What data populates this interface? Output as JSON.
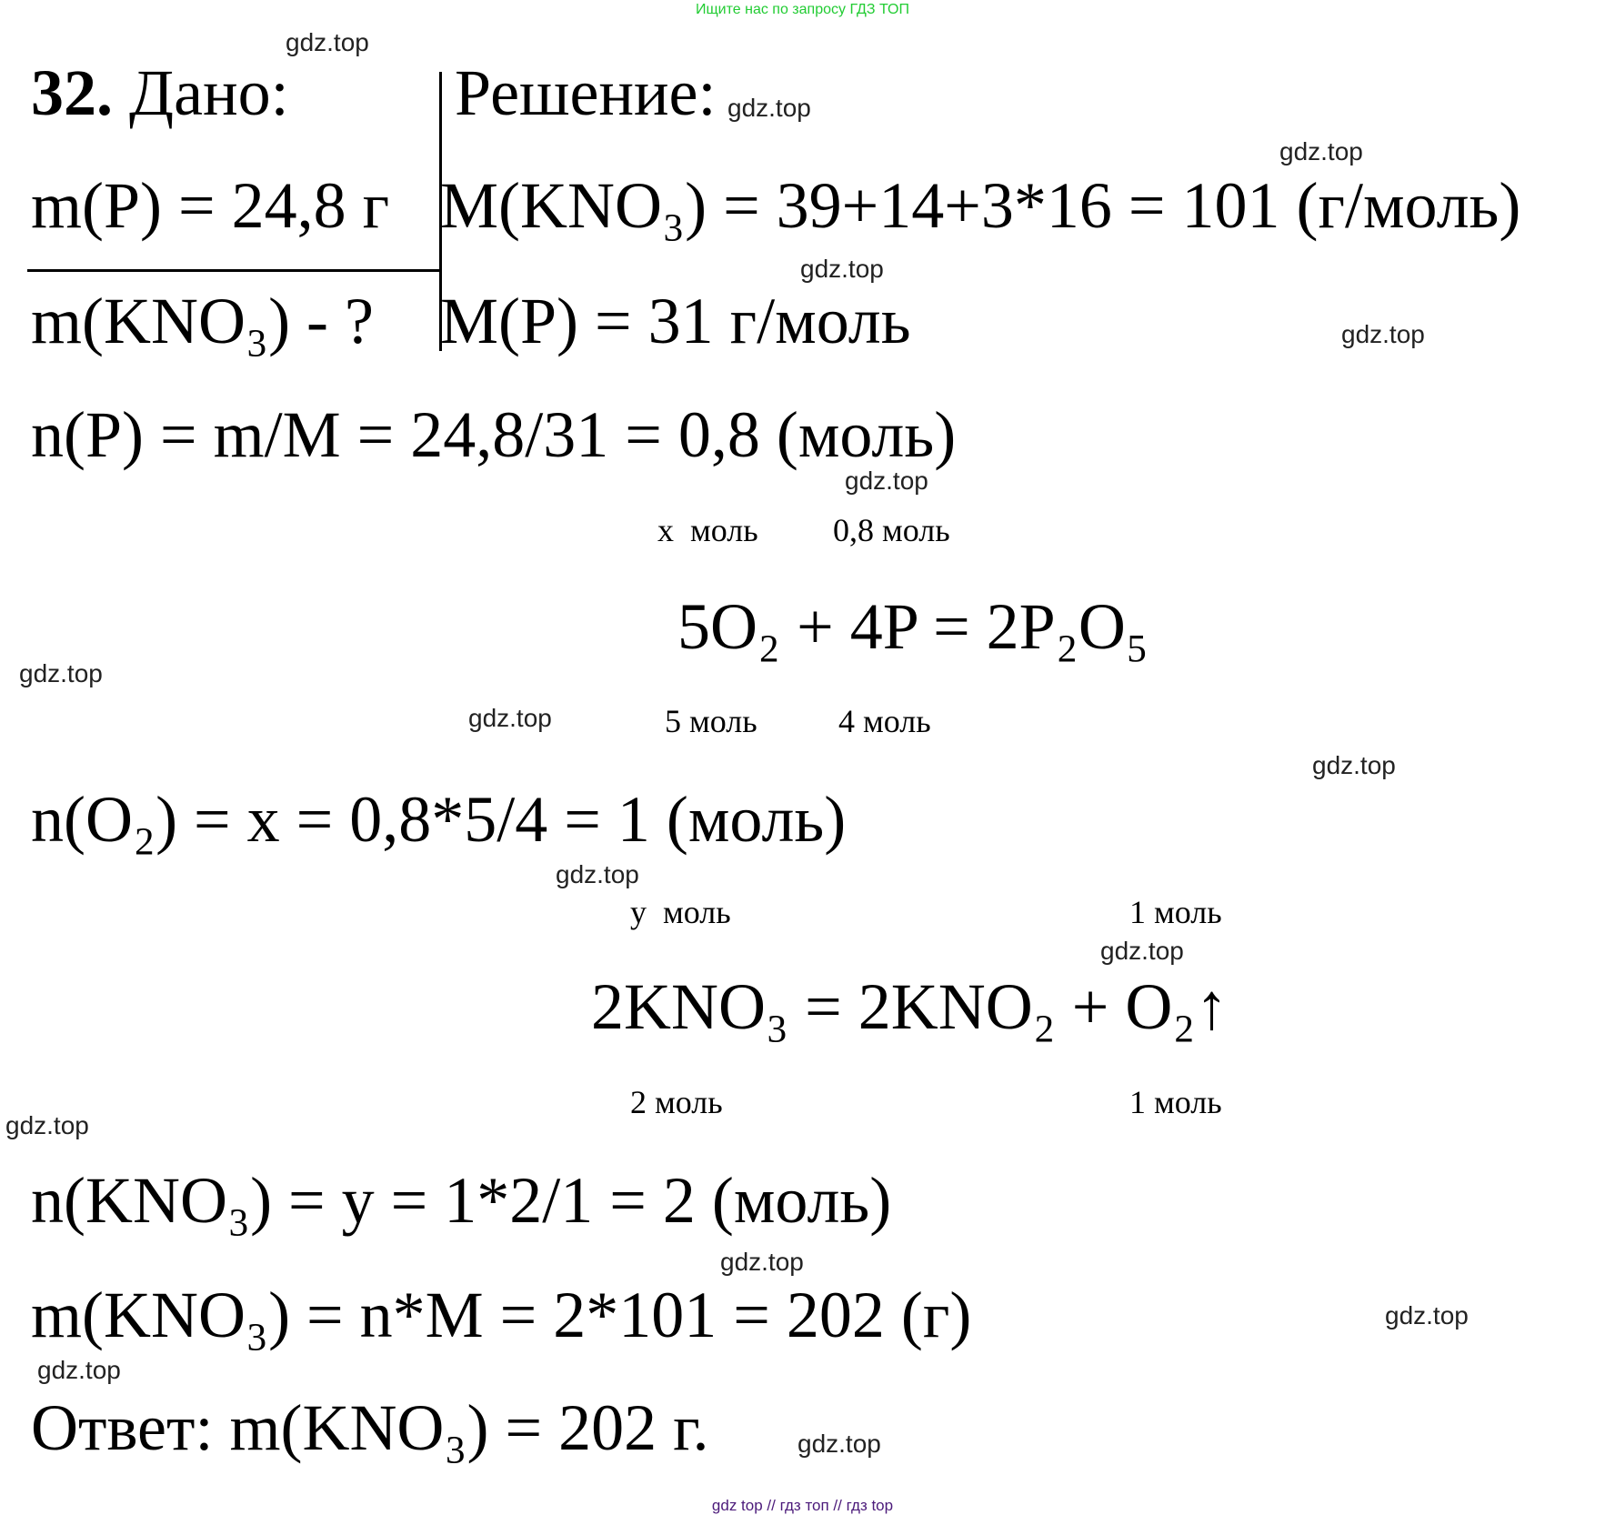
{
  "header_banner": "Ищите нас по запросу ГДЗ ТОП",
  "footer_banner": "gdz top  //  гдз топ  //  гдз top",
  "watermark": "gdz.top",
  "colors": {
    "banner": "#22cc33",
    "footer": "#4b1a7a",
    "text": "#000000"
  },
  "given": {
    "number": "32.",
    "title": "Дано:",
    "mass_p": "m(P) = 24,8 г",
    "find": "m(KNO₃) - ?"
  },
  "solution": {
    "title": "Решение:",
    "molar_kno3": "M(KNO₃) = 39+14+3*16 = 101 (г/моль)",
    "molar_p": "M(P) = 31 г/моль",
    "n_p": "n(P) = m/M = 24,8/31 = 0,8 (моль)",
    "eq1": {
      "top_left": "x  моль",
      "top_right": "0,8 моль",
      "equation": "5O₂ + 4P = 2P₂O₅",
      "bottom_left": "5 моль",
      "bottom_right": "4 моль"
    },
    "n_o2": "n(O₂) = x = 0,8*5/4 = 1 (моль)",
    "eq2": {
      "top_left": "y  моль",
      "top_right": "1 моль",
      "equation": "2KNO₃ = 2KNO₂ + O₂↑",
      "bottom_left": "2 моль",
      "bottom_right": "1 моль"
    },
    "n_kno3": "n(KNO₃) = y = 1*2/1 = 2 (моль)",
    "m_kno3": "m(KNO₃) = n*M = 2*101 = 202 (г)",
    "answer": "Ответ: m(KNO₃) = 202 г."
  }
}
